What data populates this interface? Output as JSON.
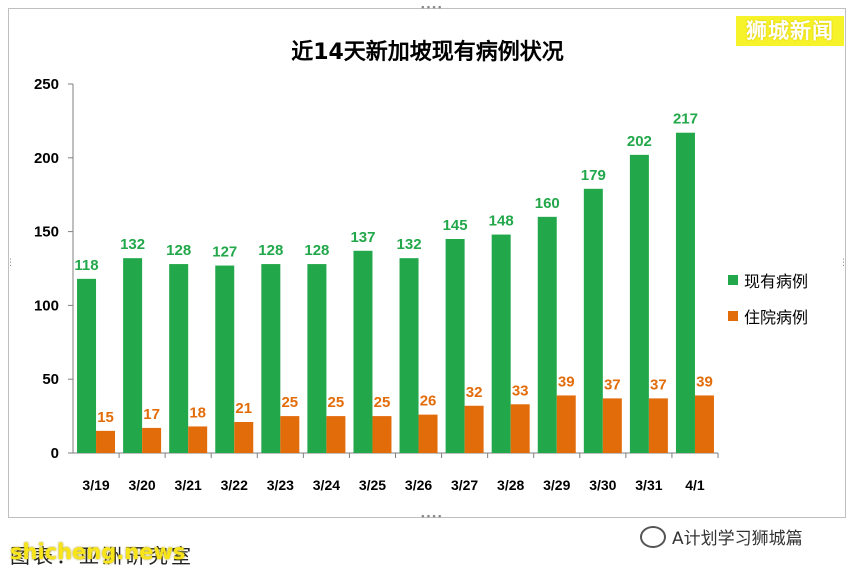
{
  "brand": "狮城新闻",
  "chart_data": {
    "type": "bar",
    "title": "近14天新加坡现有病例状况",
    "categories": [
      "3/19",
      "3/20",
      "3/21",
      "3/22",
      "3/23",
      "3/24",
      "3/25",
      "3/26",
      "3/27",
      "3/28",
      "3/29",
      "3/30",
      "3/31",
      "4/1"
    ],
    "series": [
      {
        "name": "现有病例",
        "color": "#22a84a",
        "values": [
          118,
          132,
          128,
          127,
          128,
          128,
          137,
          132,
          145,
          148,
          160,
          179,
          202,
          217
        ]
      },
      {
        "name": "住院病例",
        "color": "#e36c0a",
        "values": [
          15,
          17,
          18,
          21,
          25,
          25,
          25,
          26,
          32,
          33,
          39,
          37,
          37,
          39
        ]
      }
    ],
    "ylim": [
      0,
      250
    ],
    "yticks": [
      0,
      50,
      100,
      150,
      200,
      250
    ],
    "grid": false,
    "legend_position": "right"
  },
  "footer": {
    "watermark": "shicheng.news",
    "caption": "图表：亚洲研究室",
    "account": "A计划学习狮城篇"
  }
}
